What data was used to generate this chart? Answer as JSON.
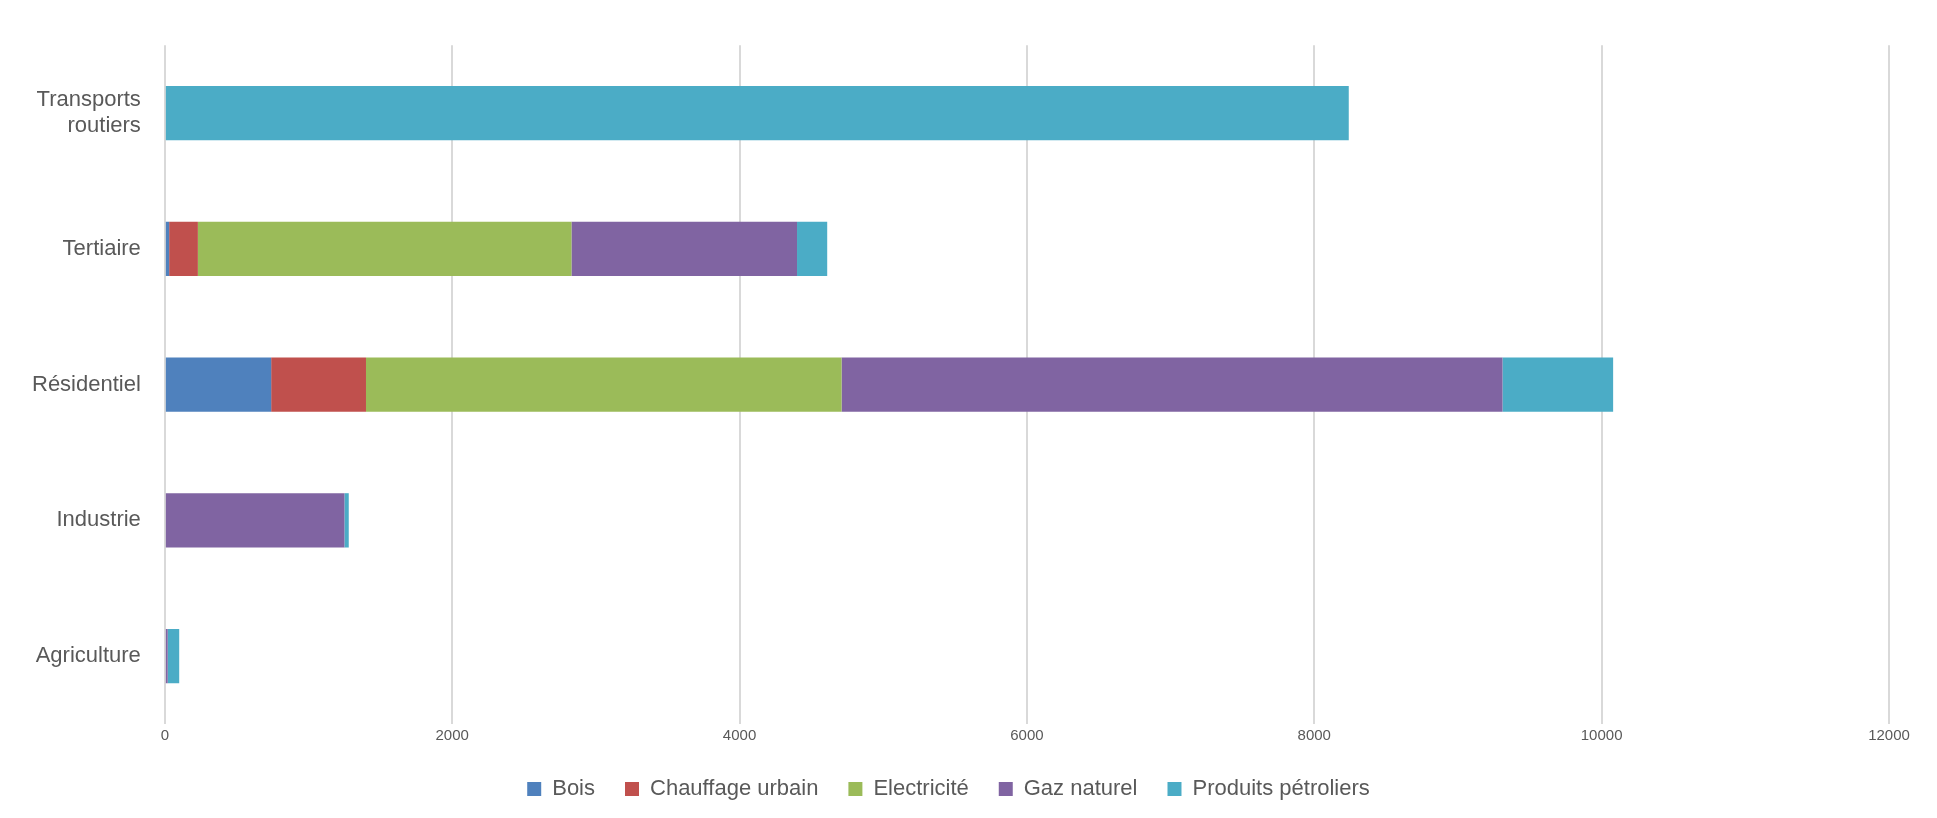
{
  "chart_data": {
    "type": "bar",
    "orientation": "horizontal",
    "stacked": true,
    "categories": [
      "Transports routiers",
      "Tertiaire",
      "Résidentiel",
      "Industrie",
      "Agriculture"
    ],
    "series": [
      {
        "name": "Bois",
        "color": "#4f81bd",
        "values": [
          0,
          30,
          740,
          0,
          0
        ]
      },
      {
        "name": "Chauffage urbain",
        "color": "#c0504d",
        "values": [
          0,
          200,
          660,
          0,
          0
        ]
      },
      {
        "name": "Electricité",
        "color": "#9bbb59",
        "values": [
          0,
          2600,
          3310,
          0,
          0
        ]
      },
      {
        "name": "Gaz naturel",
        "color": "#8064a2",
        "values": [
          0,
          1570,
          4600,
          1250,
          20
        ]
      },
      {
        "name": "Produits pétroliers",
        "color": "#4bacc6",
        "values": [
          8240,
          210,
          770,
          30,
          80
        ]
      }
    ],
    "xlim": [
      0,
      12000
    ],
    "xticks": [
      0,
      2000,
      4000,
      6000,
      8000,
      10000,
      12000
    ],
    "grid": "x",
    "legend": "bottom"
  }
}
